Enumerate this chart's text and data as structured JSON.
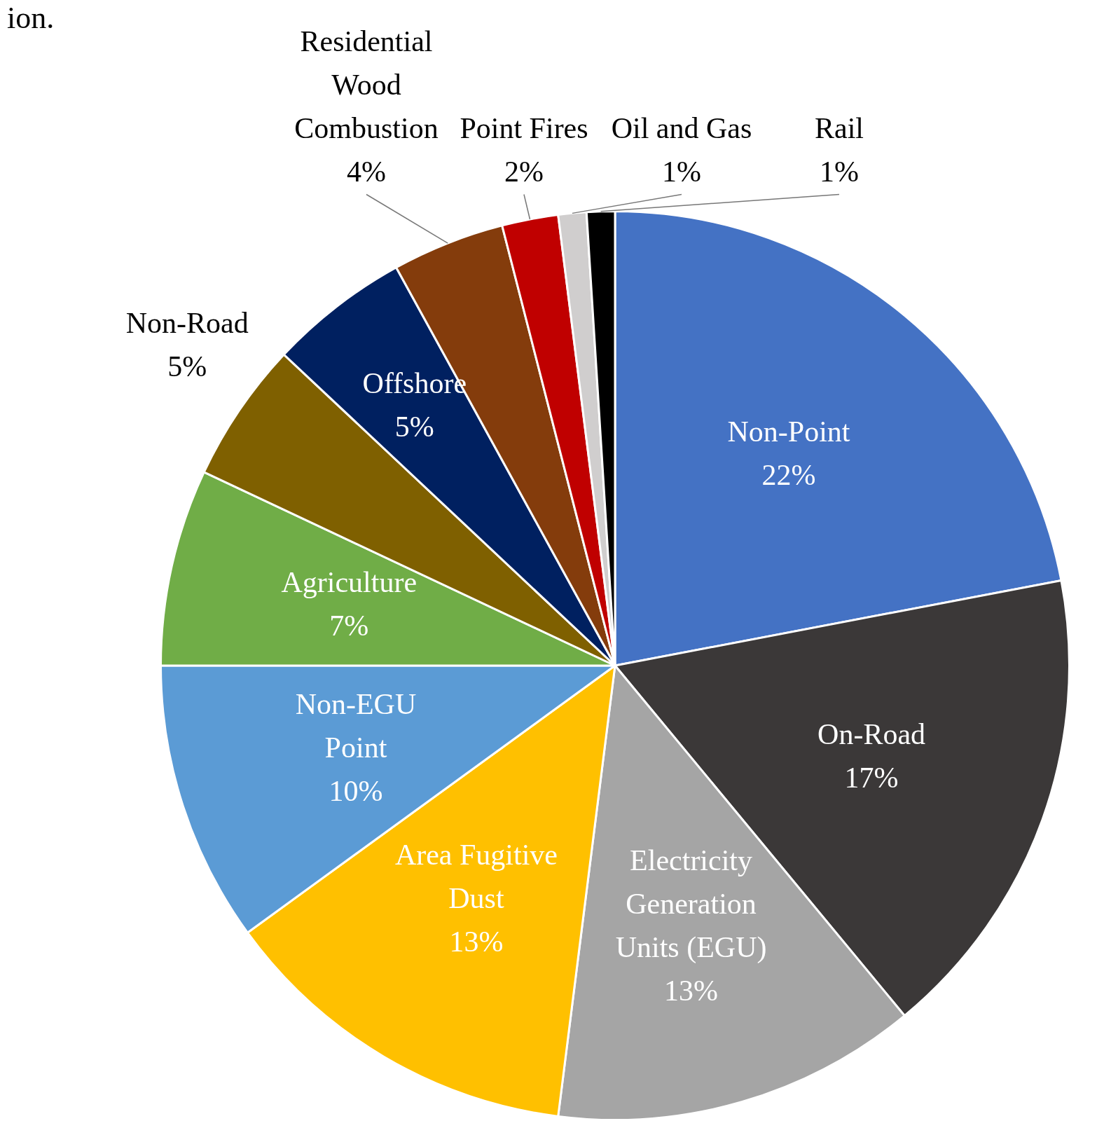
{
  "chart_data": {
    "type": "pie",
    "title": "ion.",
    "categories": [
      "Non-Point",
      "On-Road",
      "Electricity Generation Units (EGU)",
      "Area Fugitive Dust",
      "Non-EGU Point",
      "Agriculture",
      "Non-Road",
      "Offshore",
      "Residential Wood Combustion",
      "Point Fires",
      "Oil and Gas",
      "Rail"
    ],
    "values": [
      22,
      17,
      13,
      13,
      10,
      7,
      5,
      5,
      4,
      2,
      1,
      1
    ],
    "colors": [
      "#4472c4",
      "#3b3838",
      "#a5a5a5",
      "#ffc000",
      "#5b9bd5",
      "#70ad47",
      "#7f6000",
      "#002060",
      "#843c0c",
      "#c00000",
      "#d0cece",
      "#000000"
    ],
    "value_labels": [
      "22%",
      "17%",
      "13%",
      "13%",
      "10%",
      "7%",
      "5%",
      "5%",
      "4%",
      "2%",
      "1%",
      "1%"
    ],
    "legend": false
  }
}
